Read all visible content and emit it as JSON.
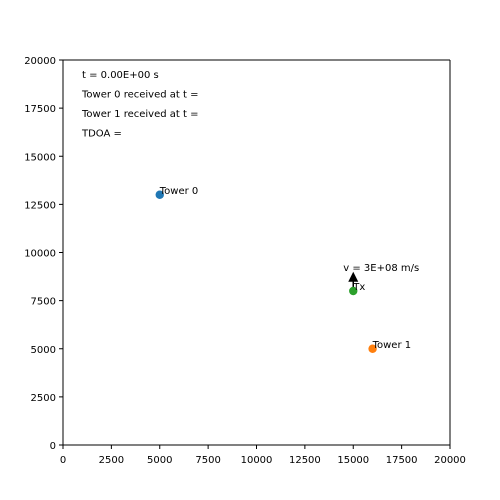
{
  "chart_data": {
    "type": "scatter",
    "title": "",
    "xlabel": "",
    "ylabel": "",
    "xlim": [
      0,
      20000
    ],
    "ylim": [
      0,
      20000
    ],
    "xticks": [
      0,
      2500,
      5000,
      7500,
      10000,
      12500,
      15000,
      17500,
      20000
    ],
    "yticks": [
      0,
      2500,
      5000,
      7500,
      10000,
      12500,
      15000,
      17500,
      20000
    ],
    "grid": false,
    "points": [
      {
        "label": "Tower 0",
        "x": 5000,
        "y": 13000,
        "color": "#1f77b4"
      },
      {
        "label": "Tower 1",
        "x": 16000,
        "y": 5000,
        "color": "#ff7f0e"
      },
      {
        "label": "Tx",
        "x": 15000,
        "y": 8000,
        "color": "#2ca02c"
      }
    ],
    "velocity_arrow": {
      "label": "v = 3E+08 m/s",
      "x": 15000,
      "y": 8000,
      "dx": 0,
      "dy": 1000,
      "color": "#000000"
    },
    "info_lines": [
      "t = 0.00E+00 s",
      "Tower 0 received at t =",
      "Tower 1 received at t =",
      "TDOA ="
    ]
  }
}
